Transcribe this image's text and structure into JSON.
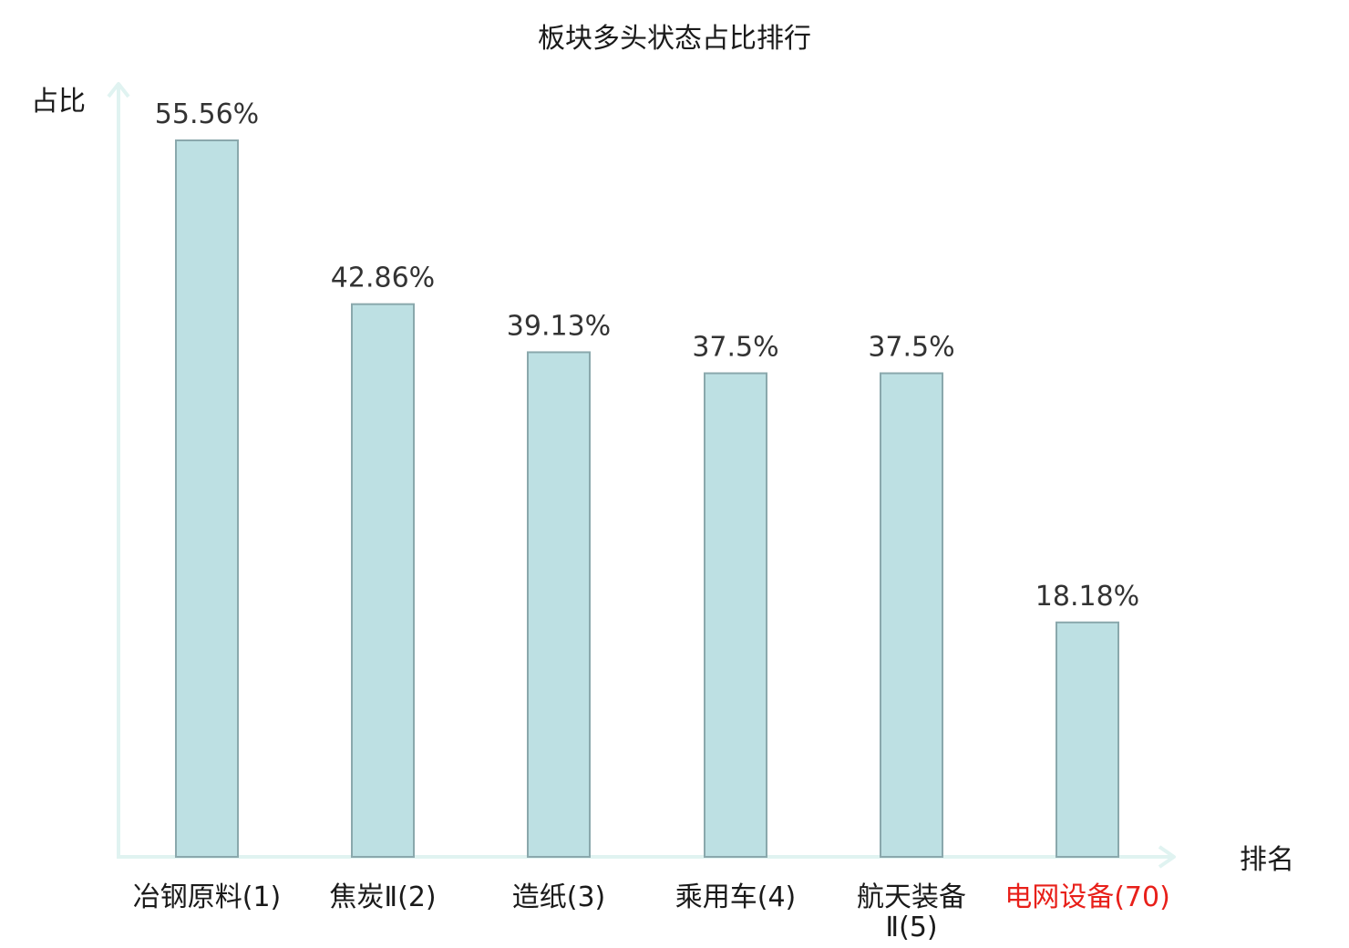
{
  "chart_data": {
    "type": "bar",
    "title": "板块多头状态占比排行",
    "xlabel": "排名",
    "ylabel": "占比",
    "categories": [
      "冶钢原料(1)",
      "焦炭Ⅱ(2)",
      "造纸(3)",
      "乘用车(4)",
      "航天装备Ⅱ(5)",
      "电网设备(70)"
    ],
    "tick_label_lines": [
      [
        "冶钢原料(1)"
      ],
      [
        "焦炭Ⅱ(2)"
      ],
      [
        "造纸(3)"
      ],
      [
        "乘用车(4)"
      ],
      [
        "航天装备",
        "Ⅱ(5)"
      ],
      [
        "电网设备(70)"
      ]
    ],
    "values": [
      55.56,
      42.86,
      39.13,
      37.5,
      37.5,
      18.18
    ],
    "value_labels": [
      "55.56%",
      "42.86%",
      "39.13%",
      "37.5%",
      "37.5%",
      "18.18%"
    ],
    "ylim": [
      0,
      60
    ],
    "grid": false,
    "highlight_index": 5,
    "colors": {
      "bar_fill": "#bde0e3",
      "bar_stroke": "#8aa8ac",
      "axis": "#e0f3f1",
      "highlight_text": "#e8201a",
      "text": "#1a1a1a"
    }
  }
}
